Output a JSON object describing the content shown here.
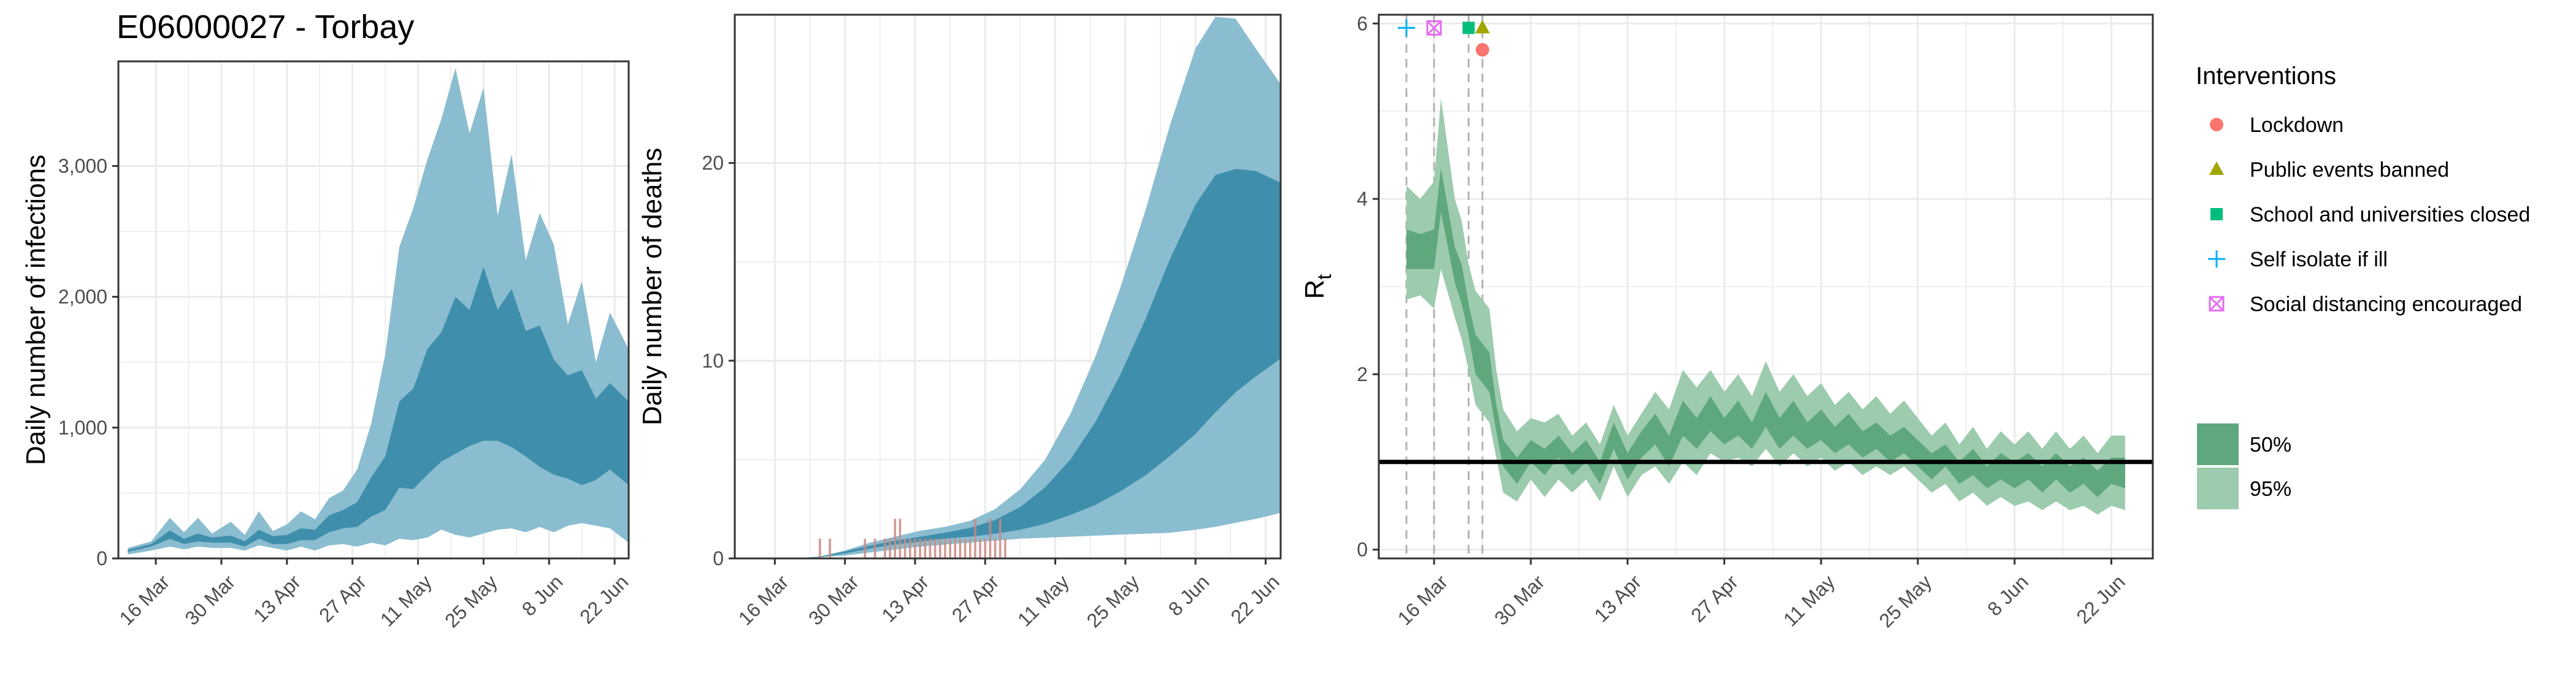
{
  "figure_title": "E06000027 - Torbay",
  "colors": {
    "band95_blue": "#8bbdd0",
    "band50_blue": "#3f8fac",
    "band95_green": "#9ccbad",
    "band50_green": "#5fa77d",
    "death_bars": "#c98a84",
    "lockdown": "#F8766D",
    "public_events": "#A3A500",
    "schools": "#00BF7D",
    "self_isolate": "#00B0F6",
    "social_distancing": "#E76BF3",
    "grid": "#ebebeb"
  },
  "chart_data": [
    {
      "type": "area",
      "id": "infections",
      "title": "E06000027 - Torbay",
      "ylabel": "Daily number of infections",
      "xlabel": "",
      "x_range": [
        "2020-03-08",
        "2020-06-25"
      ],
      "ylim": [
        0,
        3800
      ],
      "y_ticks": [
        0,
        1000,
        2000,
        3000
      ],
      "y_tick_labels": [
        "0",
        "1,000",
        "2,000",
        "3,000"
      ],
      "x_tick_labels": [
        "16 Mar",
        "30 Mar",
        "13 Apr",
        "27 Apr",
        "11 May",
        "25 May",
        "8 Jun",
        "22 Jun"
      ],
      "x_tick_dates": [
        "2020-03-16",
        "2020-03-30",
        "2020-04-13",
        "2020-04-27",
        "2020-05-11",
        "2020-05-25",
        "2020-06-08",
        "2020-06-22"
      ],
      "x": [
        "2020-03-10",
        "2020-03-15",
        "2020-03-19",
        "2020-03-22",
        "2020-03-25",
        "2020-03-28",
        "2020-04-01",
        "2020-04-04",
        "2020-04-07",
        "2020-04-10",
        "2020-04-13",
        "2020-04-16",
        "2020-04-19",
        "2020-04-22",
        "2020-04-25",
        "2020-04-28",
        "2020-05-01",
        "2020-05-04",
        "2020-05-07",
        "2020-05-10",
        "2020-05-13",
        "2020-05-16",
        "2020-05-19",
        "2020-05-22",
        "2020-05-25",
        "2020-05-28",
        "2020-05-31",
        "2020-06-03",
        "2020-06-06",
        "2020-06-09",
        "2020-06-12",
        "2020-06-15",
        "2020-06-18",
        "2020-06-21",
        "2020-06-25"
      ],
      "series": [
        {
          "name": "95%",
          "lower": [
            30,
            60,
            90,
            70,
            90,
            80,
            80,
            60,
            100,
            80,
            60,
            90,
            60,
            100,
            110,
            90,
            120,
            100,
            150,
            140,
            160,
            220,
            180,
            160,
            190,
            220,
            230,
            200,
            240,
            200,
            250,
            270,
            250,
            230,
            120
          ],
          "upper": [
            80,
            130,
            310,
            200,
            310,
            190,
            280,
            180,
            360,
            210,
            260,
            360,
            300,
            460,
            520,
            680,
            1030,
            1560,
            2380,
            2680,
            3050,
            3360,
            3750,
            3250,
            3600,
            2620,
            3090,
            2280,
            2640,
            2400,
            1790,
            2120,
            1500,
            1880,
            1600
          ]
        },
        {
          "name": "50%",
          "lower": [
            50,
            90,
            150,
            110,
            130,
            120,
            120,
            90,
            150,
            110,
            110,
            140,
            140,
            200,
            230,
            240,
            320,
            370,
            540,
            530,
            640,
            740,
            800,
            860,
            900,
            900,
            850,
            780,
            700,
            640,
            610,
            560,
            600,
            680,
            560
          ],
          "upper": [
            65,
            110,
            215,
            150,
            190,
            160,
            175,
            130,
            220,
            170,
            180,
            230,
            220,
            330,
            370,
            430,
            620,
            780,
            1200,
            1300,
            1600,
            1730,
            2000,
            1900,
            2230,
            1900,
            2060,
            1740,
            1780,
            1520,
            1400,
            1440,
            1220,
            1340,
            1200
          ]
        }
      ]
    },
    {
      "type": "area",
      "id": "deaths",
      "title": "",
      "ylabel": "Daily number of deaths",
      "xlabel": "",
      "x_range": [
        "2020-03-08",
        "2020-06-25"
      ],
      "ylim": [
        0,
        27.5
      ],
      "y_ticks": [
        0,
        10,
        20
      ],
      "y_tick_labels": [
        "0",
        "10",
        "20"
      ],
      "x_tick_labels": [
        "16 Mar",
        "30 Mar",
        "13 Apr",
        "27 Apr",
        "11 May",
        "25 May",
        "8 Jun",
        "22 Jun"
      ],
      "x_tick_dates": [
        "2020-03-16",
        "2020-03-30",
        "2020-04-13",
        "2020-04-27",
        "2020-05-11",
        "2020-05-25",
        "2020-06-08",
        "2020-06-22"
      ],
      "x": [
        "2020-03-20",
        "2020-03-25",
        "2020-03-30",
        "2020-04-04",
        "2020-04-09",
        "2020-04-14",
        "2020-04-19",
        "2020-04-24",
        "2020-04-29",
        "2020-05-04",
        "2020-05-09",
        "2020-05-14",
        "2020-05-19",
        "2020-05-24",
        "2020-05-29",
        "2020-06-03",
        "2020-06-08",
        "2020-06-12",
        "2020-06-16",
        "2020-06-20",
        "2020-06-25"
      ],
      "series": [
        {
          "name": "95%",
          "lower": [
            0,
            0.05,
            0.15,
            0.3,
            0.45,
            0.6,
            0.7,
            0.8,
            0.9,
            1.0,
            1.05,
            1.1,
            1.15,
            1.2,
            1.25,
            1.3,
            1.45,
            1.6,
            1.8,
            2.0,
            2.3
          ],
          "upper": [
            0,
            0.1,
            0.4,
            0.8,
            1.1,
            1.4,
            1.6,
            1.9,
            2.5,
            3.5,
            5.0,
            7.3,
            10.2,
            13.7,
            17.6,
            22.0,
            25.8,
            27.4,
            27.3,
            25.8,
            24.0
          ]
        },
        {
          "name": "50%",
          "lower": [
            0,
            0.07,
            0.25,
            0.5,
            0.7,
            0.85,
            1.0,
            1.1,
            1.25,
            1.45,
            1.75,
            2.2,
            2.7,
            3.4,
            4.2,
            5.2,
            6.3,
            7.4,
            8.4,
            9.2,
            10.1
          ],
          "upper": [
            0,
            0.09,
            0.35,
            0.65,
            0.9,
            1.1,
            1.3,
            1.55,
            1.95,
            2.6,
            3.6,
            5.0,
            6.9,
            9.3,
            12.1,
            15.2,
            17.9,
            19.4,
            19.7,
            19.6,
            19.0
          ]
        }
      ],
      "observed_dates": [
        "2020-03-25",
        "2020-03-27",
        "2020-04-03",
        "2020-04-05",
        "2020-04-07",
        "2020-04-08",
        "2020-04-09",
        "2020-04-10",
        "2020-04-11",
        "2020-04-12",
        "2020-04-13",
        "2020-04-14",
        "2020-04-15",
        "2020-04-16",
        "2020-04-17",
        "2020-04-18",
        "2020-04-19",
        "2020-04-20",
        "2020-04-21",
        "2020-04-22",
        "2020-04-23",
        "2020-04-24",
        "2020-04-25",
        "2020-04-26",
        "2020-04-27",
        "2020-04-28",
        "2020-04-29",
        "2020-04-30",
        "2020-05-01"
      ],
      "observed_deaths": [
        1,
        1,
        1,
        1,
        1,
        1,
        2,
        2,
        1,
        1,
        1,
        1,
        1,
        1,
        1,
        1,
        1,
        1,
        1,
        1,
        1,
        1,
        2,
        1,
        1,
        2,
        1,
        2,
        1
      ]
    },
    {
      "type": "area",
      "id": "rt",
      "title": "",
      "ylabel": "R",
      "ylabel_subscript": "t",
      "xlabel": "",
      "x_range": [
        "2020-03-08",
        "2020-06-28"
      ],
      "ylim": [
        -0.1,
        6.1
      ],
      "y_ticks": [
        0,
        2,
        4,
        6
      ],
      "y_tick_labels": [
        "0",
        "2",
        "4",
        "6"
      ],
      "x_tick_labels": [
        "16 Mar",
        "30 Mar",
        "13 Apr",
        "27 Apr",
        "11 May",
        "25 May",
        "8 Jun",
        "22 Jun"
      ],
      "x_tick_dates": [
        "2020-03-16",
        "2020-03-30",
        "2020-04-13",
        "2020-04-27",
        "2020-05-11",
        "2020-05-25",
        "2020-06-08",
        "2020-06-22"
      ],
      "x": [
        "2020-03-12",
        "2020-03-14",
        "2020-03-16",
        "2020-03-17",
        "2020-03-19",
        "2020-03-20",
        "2020-03-21",
        "2020-03-22",
        "2020-03-24",
        "2020-03-25",
        "2020-03-26",
        "2020-03-28",
        "2020-03-30",
        "2020-04-01",
        "2020-04-03",
        "2020-04-05",
        "2020-04-07",
        "2020-04-09",
        "2020-04-11",
        "2020-04-13",
        "2020-04-15",
        "2020-04-17",
        "2020-04-19",
        "2020-04-21",
        "2020-04-23",
        "2020-04-25",
        "2020-04-27",
        "2020-04-29",
        "2020-05-01",
        "2020-05-03",
        "2020-05-05",
        "2020-05-07",
        "2020-05-09",
        "2020-05-11",
        "2020-05-13",
        "2020-05-15",
        "2020-05-17",
        "2020-05-19",
        "2020-05-21",
        "2020-05-23",
        "2020-05-25",
        "2020-05-27",
        "2020-05-29",
        "2020-05-31",
        "2020-06-02",
        "2020-06-04",
        "2020-06-06",
        "2020-06-08",
        "2020-06-10",
        "2020-06-12",
        "2020-06-14",
        "2020-06-16",
        "2020-06-18",
        "2020-06-20",
        "2020-06-22",
        "2020-06-24"
      ],
      "series": [
        {
          "name": "95%",
          "lower": [
            2.85,
            2.9,
            2.75,
            3.2,
            2.65,
            2.4,
            2.05,
            1.65,
            1.45,
            1.05,
            0.65,
            0.55,
            0.8,
            0.6,
            0.8,
            0.65,
            0.8,
            0.55,
            0.95,
            0.6,
            0.85,
            0.95,
            0.75,
            1.0,
            0.85,
            1.1,
            1.0,
            1.05,
            0.95,
            1.15,
            0.95,
            1.1,
            0.95,
            1.05,
            0.9,
            1.0,
            0.85,
            0.95,
            0.85,
            0.95,
            0.8,
            0.65,
            0.75,
            0.55,
            0.65,
            0.5,
            0.6,
            0.5,
            0.55,
            0.45,
            0.55,
            0.45,
            0.5,
            0.4,
            0.5,
            0.45
          ],
          "upper": [
            4.15,
            4.0,
            4.2,
            5.15,
            4.0,
            3.75,
            3.25,
            2.95,
            2.75,
            2.05,
            1.6,
            1.35,
            1.5,
            1.45,
            1.55,
            1.3,
            1.45,
            1.2,
            1.65,
            1.3,
            1.55,
            1.8,
            1.6,
            2.05,
            1.85,
            2.05,
            1.8,
            2.0,
            1.75,
            2.15,
            1.8,
            2.0,
            1.75,
            1.9,
            1.65,
            1.8,
            1.6,
            1.75,
            1.55,
            1.7,
            1.5,
            1.3,
            1.45,
            1.2,
            1.4,
            1.15,
            1.35,
            1.2,
            1.35,
            1.15,
            1.35,
            1.15,
            1.3,
            1.1,
            1.3,
            1.3
          ]
        },
        {
          "name": "50%",
          "lower": [
            3.2,
            3.2,
            3.2,
            3.85,
            3.05,
            2.8,
            2.45,
            2.0,
            1.8,
            1.35,
            0.95,
            0.75,
            1.0,
            0.85,
            1.05,
            0.85,
            1.0,
            0.75,
            1.15,
            0.8,
            1.05,
            1.2,
            0.95,
            1.3,
            1.15,
            1.35,
            1.2,
            1.3,
            1.15,
            1.4,
            1.15,
            1.3,
            1.15,
            1.25,
            1.1,
            1.2,
            1.05,
            1.15,
            1.0,
            1.1,
            0.95,
            0.8,
            0.95,
            0.75,
            0.85,
            0.7,
            0.8,
            0.7,
            0.8,
            0.65,
            0.8,
            0.65,
            0.75,
            0.6,
            0.75,
            0.7
          ],
          "upper": [
            3.65,
            3.6,
            3.65,
            4.35,
            3.45,
            3.25,
            2.8,
            2.45,
            2.25,
            1.65,
            1.25,
            1.05,
            1.25,
            1.15,
            1.3,
            1.1,
            1.25,
            1.0,
            1.45,
            1.1,
            1.35,
            1.55,
            1.3,
            1.7,
            1.5,
            1.75,
            1.5,
            1.7,
            1.45,
            1.8,
            1.5,
            1.7,
            1.45,
            1.6,
            1.4,
            1.55,
            1.35,
            1.45,
            1.3,
            1.4,
            1.25,
            1.1,
            1.2,
            1.0,
            1.15,
            0.95,
            1.1,
            1.0,
            1.1,
            0.95,
            1.1,
            0.95,
            1.05,
            0.9,
            1.05,
            1.05
          ]
        }
      ],
      "reference_line_y": 1,
      "intervention_dates": [
        "2020-03-12",
        "2020-03-16",
        "2020-03-21",
        "2020-03-23"
      ],
      "interventions": [
        {
          "name": "Lockdown",
          "date": "2020-03-23",
          "color": "#F8766D",
          "shape": "circle",
          "y": 5.7
        },
        {
          "name": "Public events banned",
          "date": "2020-03-23",
          "color": "#A3A500",
          "shape": "triangle",
          "y": 5.95
        },
        {
          "name": "School and universities closed",
          "date": "2020-03-21",
          "color": "#00BF7D",
          "shape": "square",
          "y": 5.95
        },
        {
          "name": "Self isolate if ill",
          "date": "2020-03-12",
          "color": "#00B0F6",
          "shape": "plus",
          "y": 5.95
        },
        {
          "name": "Social distancing encouraged",
          "date": "2020-03-16",
          "color": "#E76BF3",
          "shape": "boxx",
          "y": 5.95
        }
      ]
    }
  ],
  "legend": {
    "title": "Interventions",
    "items": [
      {
        "label": "Lockdown",
        "shape": "circle",
        "color": "#F8766D"
      },
      {
        "label": "Public events banned",
        "shape": "triangle",
        "color": "#A3A500"
      },
      {
        "label": "School and universities closed",
        "shape": "square",
        "color": "#00BF7D"
      },
      {
        "label": "Self isolate if ill",
        "shape": "plus",
        "color": "#00B0F6"
      },
      {
        "label": "Social distancing encouraged",
        "shape": "boxx",
        "color": "#E76BF3"
      }
    ],
    "band_items": [
      {
        "label": "50%",
        "color": "#5fa77d"
      },
      {
        "label": "95%",
        "color": "#9ccbad"
      }
    ]
  }
}
